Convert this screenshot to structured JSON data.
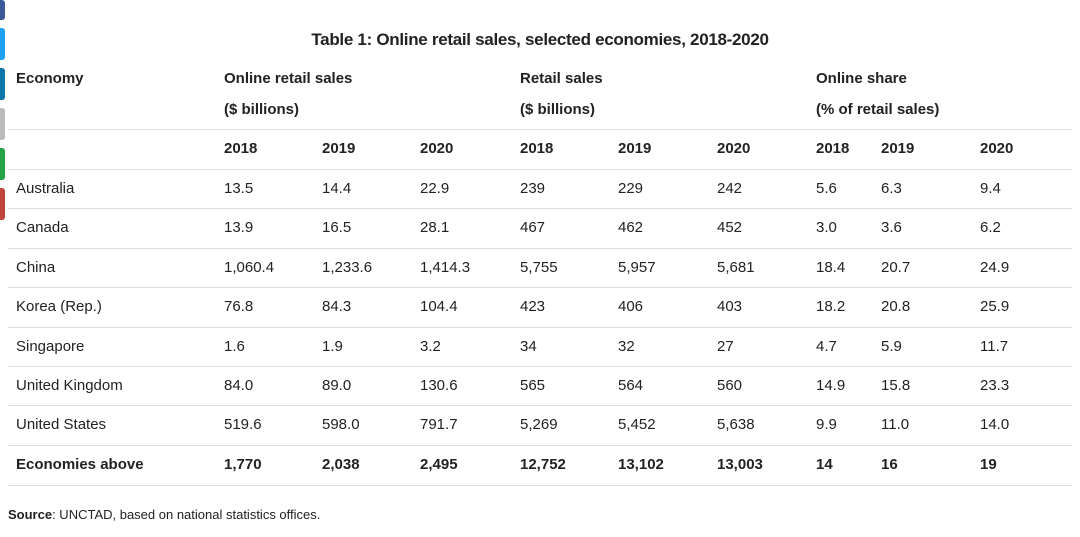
{
  "title": "Table 1: Online retail sales, selected economies, 2018-2020",
  "header": {
    "economy": "Economy",
    "groups": [
      {
        "label": "Online retail sales",
        "unit": "($ billions)"
      },
      {
        "label": "Retail sales",
        "unit": "($ billions)"
      },
      {
        "label": "Online share",
        "unit": "(% of retail sales)"
      }
    ],
    "years": [
      "2018",
      "2019",
      "2020",
      "2018",
      "2019",
      "2020",
      "2018",
      "2019",
      "2020"
    ]
  },
  "rows": [
    {
      "economy": "Australia",
      "values": [
        "13.5",
        "14.4",
        "22.9",
        "239",
        "229",
        "242",
        "5.6",
        "6.3",
        "9.4"
      ]
    },
    {
      "economy": "Canada",
      "values": [
        "13.9",
        "16.5",
        "28.1",
        "467",
        "462",
        "452",
        "3.0",
        "3.6",
        "6.2"
      ]
    },
    {
      "economy": "China",
      "values": [
        "1,060.4",
        "1,233.6",
        "1,414.3",
        "5,755",
        "5,957",
        "5,681",
        "18.4",
        "20.7",
        "24.9"
      ]
    },
    {
      "economy": "Korea (Rep.)",
      "values": [
        "76.8",
        "84.3",
        "104.4",
        "423",
        "406",
        "403",
        "18.2",
        "20.8",
        "25.9"
      ]
    },
    {
      "economy": "Singapore",
      "values": [
        "1.6",
        "1.9",
        "3.2",
        "34",
        "32",
        "27",
        "4.7",
        "5.9",
        "11.7"
      ]
    },
    {
      "economy": "United Kingdom",
      "values": [
        "84.0",
        "89.0",
        "130.6",
        "565",
        "564",
        "560",
        "14.9",
        "15.8",
        "23.3"
      ]
    },
    {
      "economy": "United States",
      "values": [
        "519.6",
        "598.0",
        "791.7",
        "5,269",
        "5,452",
        "5,638",
        "9.9",
        "11.0",
        "14.0"
      ]
    }
  ],
  "total": {
    "economy": "Economies above",
    "values": [
      "1,770",
      "2,038",
      "2,495",
      "12,752",
      "13,102",
      "13,003",
      "14",
      "16",
      "19"
    ]
  },
  "source": {
    "label": "Source",
    "text": ": UNCTAD, based on national statistics offices."
  }
}
